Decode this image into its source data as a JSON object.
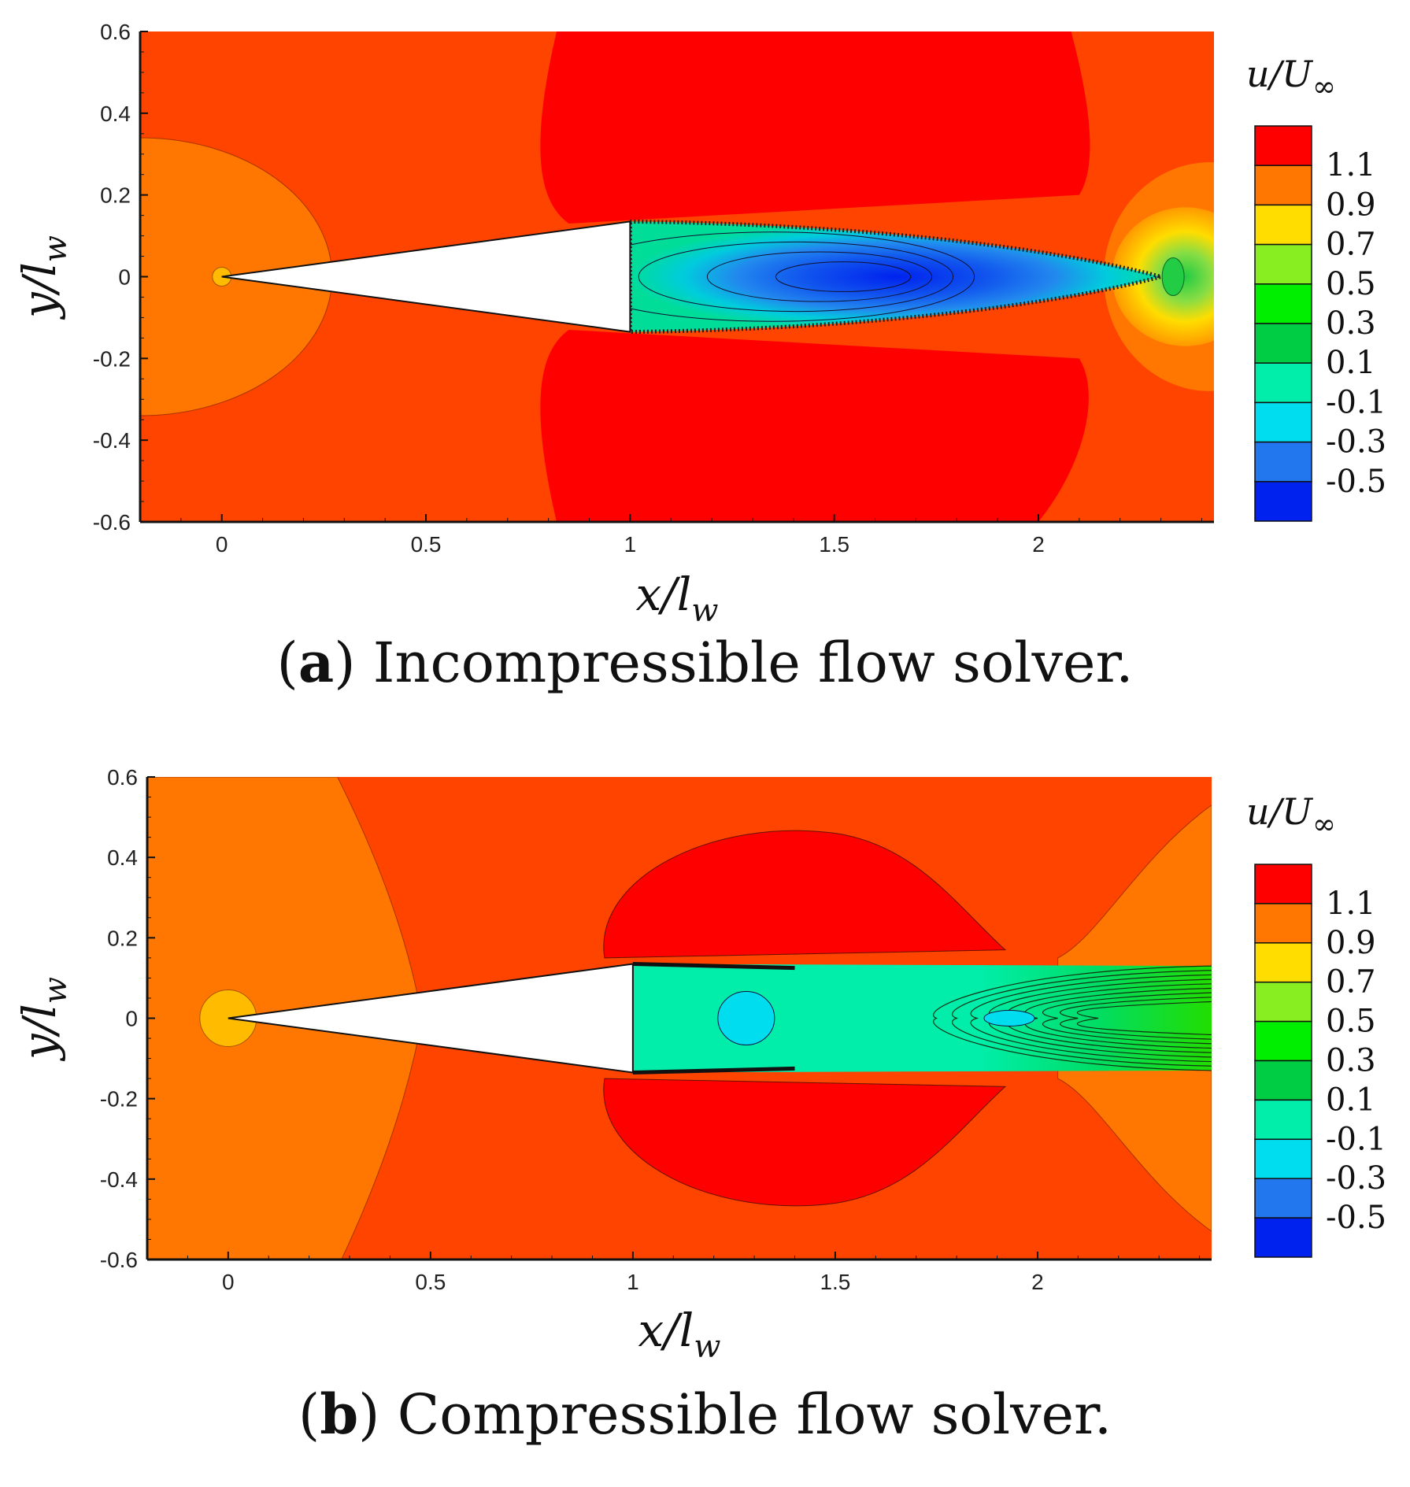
{
  "chart_data": [
    {
      "type": "contour",
      "panel": "a",
      "caption_letter": "a",
      "caption_text": " Incompressible flow solver.",
      "xlabel": "x/l",
      "xlabel_sub": "w",
      "ylabel": "y/l",
      "ylabel_sub": "w",
      "xlim": [
        -0.2,
        2.43
      ],
      "ylim": [
        -0.6,
        0.6
      ],
      "xticks": [
        0,
        0.5,
        1,
        1.5,
        2
      ],
      "xtick_labels": [
        "0",
        "0.5",
        "1",
        "1.5",
        "2"
      ],
      "yticks": [
        -0.6,
        -0.4,
        -0.2,
        0,
        0.2,
        0.4,
        0.6
      ],
      "ytick_labels": [
        "-0.6",
        "-0.4",
        "-0.2",
        "0",
        "0.2",
        "0.4",
        "0.6"
      ],
      "colorbar": {
        "title": "u/U",
        "title_sub": "∞",
        "levels": [
          "1.1",
          "0.9",
          "0.7",
          "0.5",
          "0.3",
          "0.1",
          "-0.1",
          "-0.3",
          "-0.5"
        ],
        "colors": [
          "#ff0000",
          "#ff7700",
          "#ffdd00",
          "#88ee22",
          "#00ee00",
          "#00cc44",
          "#00eeaa",
          "#00ddee",
          "#2277ee",
          "#0022ee"
        ]
      },
      "wedge": {
        "apex": [
          0.0,
          0.0
        ],
        "base_x": 1.0,
        "base_half_height": 0.135
      }
    },
    {
      "type": "contour",
      "panel": "b",
      "caption_letter": "b",
      "caption_text": " Compressible flow solver.",
      "xlabel": "x/l",
      "xlabel_sub": "w",
      "ylabel": "y/l",
      "ylabel_sub": "w",
      "xlim": [
        -0.2,
        2.43
      ],
      "ylim": [
        -0.6,
        0.6
      ],
      "xticks": [
        0,
        0.5,
        1,
        1.5,
        2
      ],
      "xtick_labels": [
        "0",
        "0.5",
        "1",
        "1.5",
        "2"
      ],
      "yticks": [
        -0.6,
        -0.4,
        -0.2,
        0,
        0.2,
        0.4,
        0.6
      ],
      "ytick_labels": [
        "-0.6",
        "-0.4",
        "-0.2",
        "0",
        "0.2",
        "0.4",
        "0.6"
      ],
      "colorbar": {
        "title": "u/U",
        "title_sub": "∞",
        "levels": [
          "1.1",
          "0.9",
          "0.7",
          "0.5",
          "0.3",
          "0.1",
          "-0.1",
          "-0.3",
          "-0.5"
        ],
        "colors": [
          "#ff0000",
          "#ff7700",
          "#ffdd00",
          "#88ee22",
          "#00ee00",
          "#00cc44",
          "#00eeaa",
          "#00ddee",
          "#2277ee",
          "#0022ee"
        ]
      },
      "wedge": {
        "apex": [
          0.0,
          0.0
        ],
        "base_x": 1.0,
        "base_half_height": 0.135
      }
    }
  ]
}
